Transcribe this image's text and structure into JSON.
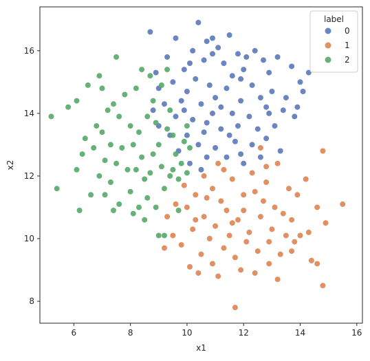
{
  "chart_data": {
    "type": "scatter",
    "title": "",
    "xlabel": "x1",
    "ylabel": "x2",
    "xlim": [
      4.8,
      16.2
    ],
    "ylim": [
      7.3,
      17.4
    ],
    "xticks": [
      6,
      8,
      10,
      12,
      14,
      16
    ],
    "yticks": [
      8,
      10,
      12,
      14,
      16
    ],
    "grid": false,
    "legend": {
      "title": "label",
      "placement": "top-right"
    },
    "series": [
      {
        "name": "0",
        "color": "#5a78b8",
        "points": [
          [
            8.7,
            16.6
          ],
          [
            10.4,
            16.9
          ],
          [
            9.6,
            16.4
          ],
          [
            10.9,
            16.4
          ],
          [
            11.5,
            16.5
          ],
          [
            10.7,
            16.3
          ],
          [
            11.8,
            15.9
          ],
          [
            12.4,
            16.0
          ],
          [
            11.1,
            16.1
          ],
          [
            10.2,
            16.0
          ],
          [
            9.3,
            15.8
          ],
          [
            9.9,
            15.4
          ],
          [
            10.6,
            15.7
          ],
          [
            11.3,
            15.6
          ],
          [
            12.0,
            15.4
          ],
          [
            12.7,
            15.7
          ],
          [
            13.2,
            15.8
          ],
          [
            13.7,
            15.5
          ],
          [
            12.9,
            15.3
          ],
          [
            11.6,
            15.2
          ],
          [
            10.3,
            15.1
          ],
          [
            9.5,
            15.0
          ],
          [
            9.0,
            14.8
          ],
          [
            10.0,
            14.7
          ],
          [
            10.8,
            14.9
          ],
          [
            11.4,
            14.8
          ],
          [
            12.3,
            14.9
          ],
          [
            13.0,
            14.7
          ],
          [
            13.5,
            14.5
          ],
          [
            14.1,
            14.7
          ],
          [
            14.3,
            15.3
          ],
          [
            12.6,
            14.5
          ],
          [
            11.9,
            14.4
          ],
          [
            11.0,
            14.5
          ],
          [
            10.5,
            14.3
          ],
          [
            9.8,
            14.4
          ],
          [
            9.2,
            14.3
          ],
          [
            8.8,
            14.1
          ],
          [
            9.6,
            13.9
          ],
          [
            10.2,
            13.8
          ],
          [
            10.9,
            14.0
          ],
          [
            11.6,
            14.0
          ],
          [
            12.2,
            13.9
          ],
          [
            12.9,
            14.0
          ],
          [
            13.4,
            14.1
          ],
          [
            13.9,
            14.2
          ],
          [
            13.1,
            13.6
          ],
          [
            12.5,
            13.5
          ],
          [
            11.8,
            13.6
          ],
          [
            11.2,
            13.5
          ],
          [
            10.6,
            13.4
          ],
          [
            10.0,
            13.3
          ],
          [
            9.4,
            13.3
          ],
          [
            9.0,
            13.6
          ],
          [
            10.4,
            13.0
          ],
          [
            11.0,
            12.9
          ],
          [
            11.7,
            13.1
          ],
          [
            12.3,
            13.0
          ],
          [
            12.8,
            13.2
          ],
          [
            10.7,
            12.6
          ],
          [
            11.4,
            12.6
          ],
          [
            10.1,
            12.4
          ],
          [
            9.7,
            12.8
          ],
          [
            11.9,
            12.7
          ],
          [
            12.6,
            12.6
          ],
          [
            10.9,
            15.9
          ],
          [
            10.1,
            15.6
          ],
          [
            11.9,
            15.1
          ],
          [
            12.8,
            14.2
          ],
          [
            9.9,
            14.1
          ],
          [
            10.7,
            13.7
          ],
          [
            11.5,
            13.3
          ],
          [
            12.0,
            12.4
          ],
          [
            13.3,
            12.8
          ],
          [
            10.5,
            12.2
          ],
          [
            14.0,
            15.0
          ],
          [
            13.8,
            13.9
          ],
          [
            8.9,
            15.3
          ],
          [
            11.2,
            14.2
          ],
          [
            12.1,
            15.8
          ]
        ]
      },
      {
        "name": "1",
        "color": "#dd8452",
        "points": [
          [
            14.8,
            12.8
          ],
          [
            15.5,
            11.1
          ],
          [
            14.9,
            10.5
          ],
          [
            14.6,
            11.0
          ],
          [
            14.3,
            10.2
          ],
          [
            13.9,
            11.4
          ],
          [
            13.7,
            10.6
          ],
          [
            13.2,
            12.4
          ],
          [
            12.8,
            11.8
          ],
          [
            12.6,
            12.9
          ],
          [
            12.3,
            12.1
          ],
          [
            12.0,
            11.4
          ],
          [
            11.6,
            11.9
          ],
          [
            11.3,
            12.2
          ],
          [
            10.9,
            11.6
          ],
          [
            10.6,
            12.0
          ],
          [
            10.3,
            11.4
          ],
          [
            10.0,
            11.0
          ],
          [
            9.6,
            11.1
          ],
          [
            9.3,
            10.7
          ],
          [
            9.5,
            10.1
          ],
          [
            9.8,
            9.8
          ],
          [
            10.2,
            10.3
          ],
          [
            10.6,
            10.7
          ],
          [
            11.0,
            10.4
          ],
          [
            11.4,
            10.9
          ],
          [
            11.8,
            10.6
          ],
          [
            12.2,
            10.2
          ],
          [
            12.6,
            10.7
          ],
          [
            13.0,
            10.3
          ],
          [
            13.4,
            10.8
          ],
          [
            13.8,
            9.9
          ],
          [
            13.3,
            9.5
          ],
          [
            12.9,
            9.2
          ],
          [
            12.5,
            9.6
          ],
          [
            12.1,
            9.9
          ],
          [
            11.7,
            9.4
          ],
          [
            11.3,
            9.7
          ],
          [
            10.9,
            9.2
          ],
          [
            10.5,
            9.5
          ],
          [
            10.1,
            9.1
          ],
          [
            10.4,
            8.9
          ],
          [
            11.1,
            8.8
          ],
          [
            11.9,
            9.0
          ],
          [
            12.4,
            8.9
          ],
          [
            13.2,
            8.7
          ],
          [
            11.5,
            10.1
          ],
          [
            12.7,
            11.2
          ],
          [
            13.6,
            11.6
          ],
          [
            14.2,
            11.9
          ],
          [
            11.7,
            7.8
          ],
          [
            9.2,
            9.7
          ],
          [
            10.8,
            10.0
          ],
          [
            12.0,
            10.9
          ],
          [
            13.1,
            11.0
          ],
          [
            14.0,
            10.1
          ],
          [
            10.3,
            10.6
          ],
          [
            11.2,
            11.2
          ],
          [
            12.4,
            11.5
          ],
          [
            9.9,
            11.7
          ],
          [
            14.6,
            9.2
          ],
          [
            14.8,
            8.5
          ],
          [
            14.4,
            9.3
          ],
          [
            13.7,
            9.6
          ],
          [
            12.8,
            12.3
          ],
          [
            11.1,
            12.4
          ],
          [
            10.7,
            11.3
          ],
          [
            12.9,
            9.9
          ],
          [
            13.5,
            10.1
          ],
          [
            11.6,
            10.5
          ]
        ]
      },
      {
        "name": "2",
        "color": "#55a868",
        "points": [
          [
            5.2,
            13.9
          ],
          [
            5.4,
            11.6
          ],
          [
            5.8,
            14.2
          ],
          [
            6.1,
            14.4
          ],
          [
            6.1,
            12.2
          ],
          [
            6.2,
            10.9
          ],
          [
            6.5,
            14.9
          ],
          [
            6.6,
            11.4
          ],
          [
            6.7,
            12.9
          ],
          [
            6.9,
            15.2
          ],
          [
            7.0,
            13.4
          ],
          [
            7.1,
            12.5
          ],
          [
            7.3,
            11.8
          ],
          [
            7.4,
            10.9
          ],
          [
            7.4,
            14.3
          ],
          [
            7.5,
            15.8
          ],
          [
            7.6,
            13.9
          ],
          [
            7.7,
            12.9
          ],
          [
            7.9,
            12.2
          ],
          [
            8.0,
            11.5
          ],
          [
            8.1,
            10.8
          ],
          [
            8.2,
            14.8
          ],
          [
            8.3,
            13.4
          ],
          [
            8.4,
            12.6
          ],
          [
            8.5,
            11.9
          ],
          [
            8.6,
            11.3
          ],
          [
            8.7,
            15.2
          ],
          [
            8.8,
            14.4
          ],
          [
            8.9,
            13.7
          ],
          [
            9.0,
            13.0
          ],
          [
            9.1,
            12.3
          ],
          [
            9.2,
            11.6
          ],
          [
            9.3,
            15.4
          ],
          [
            9.4,
            14.1
          ],
          [
            9.5,
            13.3
          ],
          [
            9.6,
            12.7
          ],
          [
            9.7,
            11.9
          ],
          [
            9.8,
            12.4
          ],
          [
            9.9,
            13.1
          ],
          [
            10.0,
            13.6
          ],
          [
            10.1,
            12.9
          ],
          [
            8.5,
            10.6
          ],
          [
            9.0,
            10.1
          ],
          [
            9.2,
            10.1
          ],
          [
            7.8,
            14.6
          ],
          [
            6.8,
            13.6
          ],
          [
            7.2,
            14.1
          ],
          [
            8.1,
            13.0
          ],
          [
            8.7,
            12.1
          ],
          [
            9.4,
            12.0
          ],
          [
            6.4,
            13.2
          ],
          [
            6.9,
            12.0
          ],
          [
            7.6,
            11.1
          ],
          [
            8.3,
            11.0
          ],
          [
            8.9,
            11.0
          ],
          [
            9.7,
            10.9
          ],
          [
            7.0,
            14.8
          ],
          [
            8.4,
            15.4
          ],
          [
            9.1,
            14.9
          ],
          [
            7.3,
            13.0
          ],
          [
            8.0,
            13.6
          ],
          [
            8.6,
            13.9
          ],
          [
            9.3,
            13.5
          ],
          [
            7.5,
            12.4
          ],
          [
            8.2,
            12.2
          ],
          [
            8.8,
            12.7
          ],
          [
            9.5,
            12.2
          ],
          [
            10.0,
            12.1
          ],
          [
            6.3,
            12.7
          ],
          [
            7.1,
            11.4
          ]
        ]
      }
    ]
  }
}
